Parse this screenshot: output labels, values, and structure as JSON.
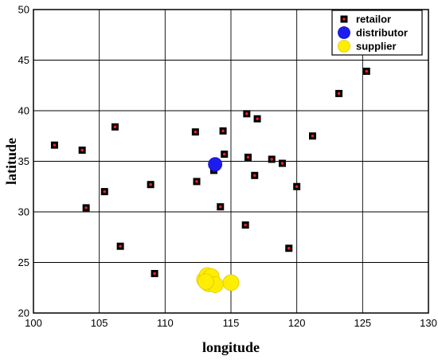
{
  "chart_data": {
    "type": "scatter",
    "xlabel": "longitude",
    "ylabel": "latitude",
    "xlim": [
      100,
      130
    ],
    "ylim": [
      20,
      50
    ],
    "xticks": [
      100,
      105,
      110,
      115,
      120,
      125,
      130
    ],
    "yticks": [
      20,
      25,
      30,
      35,
      40,
      45,
      50
    ],
    "grid": true,
    "legend": "top-right",
    "series": [
      {
        "name": "retailor",
        "marker": "square",
        "color": "#000000",
        "inner_color": "#e8202a",
        "points": [
          [
            101.6,
            36.6
          ],
          [
            103.7,
            36.1
          ],
          [
            104.0,
            30.4
          ],
          [
            105.4,
            32.0
          ],
          [
            106.2,
            38.4
          ],
          [
            106.6,
            26.6
          ],
          [
            108.9,
            32.7
          ],
          [
            109.2,
            23.9
          ],
          [
            112.3,
            37.9
          ],
          [
            112.4,
            33.0
          ],
          [
            113.7,
            34.1
          ],
          [
            114.2,
            30.5
          ],
          [
            114.4,
            38.0
          ],
          [
            114.5,
            35.7
          ],
          [
            116.1,
            28.7
          ],
          [
            116.2,
            39.7
          ],
          [
            116.3,
            35.4
          ],
          [
            116.8,
            33.6
          ],
          [
            117.0,
            39.2
          ],
          [
            118.1,
            35.2
          ],
          [
            118.9,
            34.8
          ],
          [
            119.4,
            26.4
          ],
          [
            120.0,
            32.5
          ],
          [
            121.2,
            37.5
          ],
          [
            123.2,
            41.7
          ],
          [
            125.3,
            43.9
          ]
        ]
      },
      {
        "name": "distributor",
        "marker": "circle",
        "color": "#1c1cf0",
        "points": [
          [
            113.8,
            34.7
          ]
        ]
      },
      {
        "name": "supplier",
        "marker": "circle",
        "color": "#ffee00",
        "points": [
          [
            113.0,
            23.3
          ],
          [
            113.2,
            23.7
          ],
          [
            113.5,
            23.6
          ],
          [
            113.3,
            22.9
          ],
          [
            113.8,
            22.8
          ],
          [
            113.1,
            23.1
          ],
          [
            115.0,
            23.0
          ]
        ]
      }
    ]
  }
}
